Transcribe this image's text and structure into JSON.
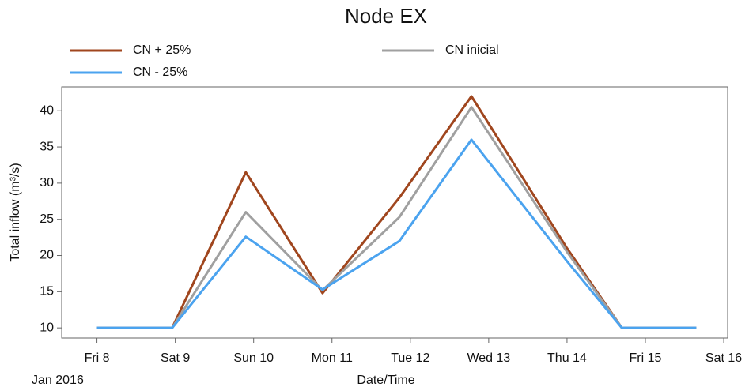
{
  "chart_data": {
    "type": "line",
    "title": "Node EX",
    "x_label": "Date/Time",
    "y_label": "Total inflow (m³/s)",
    "x_annotation": "Jan 2016",
    "x": [
      8,
      8.96,
      9.9,
      10.88,
      11.86,
      12.78,
      14.0,
      14.7,
      15.65
    ],
    "series": [
      {
        "name": "CN + 25%",
        "color": "#a0461e",
        "values": [
          10,
          10,
          31.5,
          14.8,
          28,
          42,
          21,
          10,
          10
        ]
      },
      {
        "name": "CN inicial",
        "color": "#a0a0a0",
        "values": [
          10,
          10,
          26,
          15.2,
          25.3,
          40.5,
          20.5,
          10,
          10
        ]
      },
      {
        "name": "CN - 25%",
        "color": "#4ba3ef",
        "values": [
          10,
          10,
          22.6,
          15.3,
          22,
          36,
          19.2,
          10,
          10
        ]
      }
    ],
    "xlim": [
      7.55,
      16.05
    ],
    "xticks": [
      {
        "value": 8,
        "label": "Fri 8"
      },
      {
        "value": 9,
        "label": "Sat 9"
      },
      {
        "value": 10,
        "label": "Sun 10"
      },
      {
        "value": 11,
        "label": "Mon 11"
      },
      {
        "value": 12,
        "label": "Tue 12"
      },
      {
        "value": 13,
        "label": "Wed 13"
      },
      {
        "value": 14,
        "label": "Thu 14"
      },
      {
        "value": 15,
        "label": "Fri 15"
      },
      {
        "value": 16,
        "label": "Sat 16"
      }
    ],
    "ylim": [
      8.6,
      43.3
    ],
    "yticks": [
      10,
      15,
      20,
      25,
      30,
      35,
      40
    ],
    "grid": false
  }
}
